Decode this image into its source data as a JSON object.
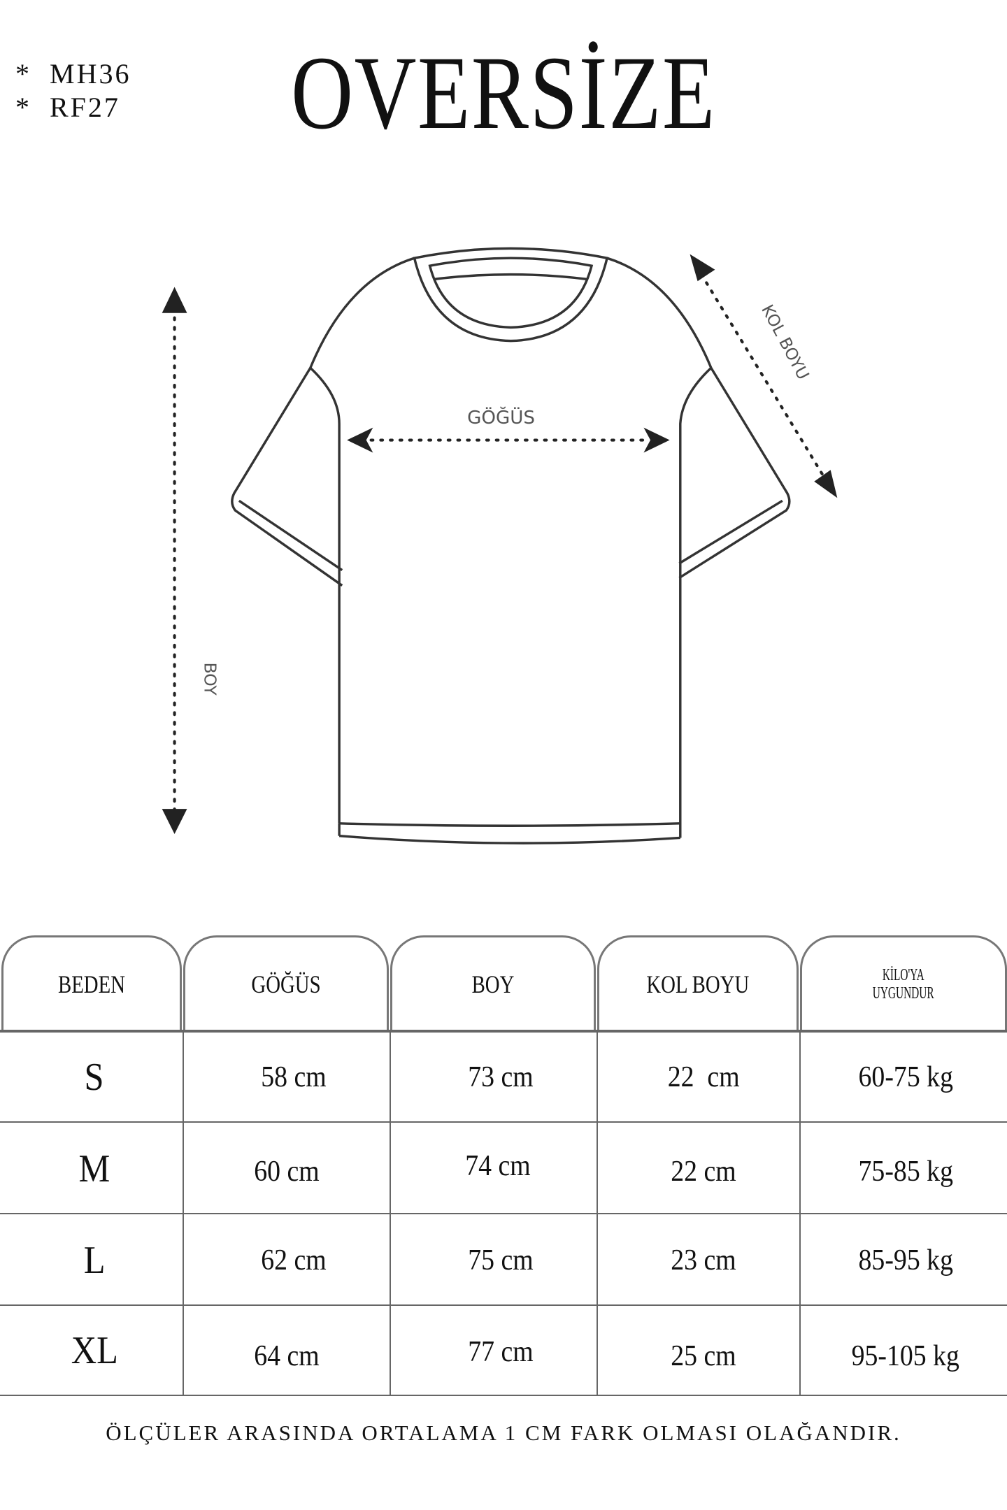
{
  "codes": [
    "*  MH36",
    "*  RF27"
  ],
  "title": "OVERSİZE",
  "diagram": {
    "chest_label": "GÖĞÜS",
    "length_label": "BOY",
    "sleeve_label": "KOL BOYU"
  },
  "table": {
    "headers": [
      "BEDEN",
      "GÖĞÜS",
      "BOY",
      "KOL BOYU",
      "KİLO'YA UYGUNDUR"
    ],
    "header_lines_last": [
      "KİLO'YA",
      "UYGUNDUR"
    ],
    "rows": [
      [
        "S",
        "58 cm",
        "73 cm",
        "22  cm",
        "60-75 kg"
      ],
      [
        "M",
        "60 cm",
        "74 cm",
        "22 cm",
        "75-85 kg"
      ],
      [
        "L",
        "62 cm",
        "75 cm",
        "23 cm",
        "85-95 kg"
      ],
      [
        "XL",
        "64 cm",
        "77 cm",
        "25 cm",
        "95-105 kg"
      ]
    ]
  },
  "footer": "ÖLÇÜLER ARASINDA ORTALAMA 1 CM FARK OLMASI OLAĞANDIR.",
  "colors": {
    "line": "#666666",
    "text": "#111111"
  }
}
